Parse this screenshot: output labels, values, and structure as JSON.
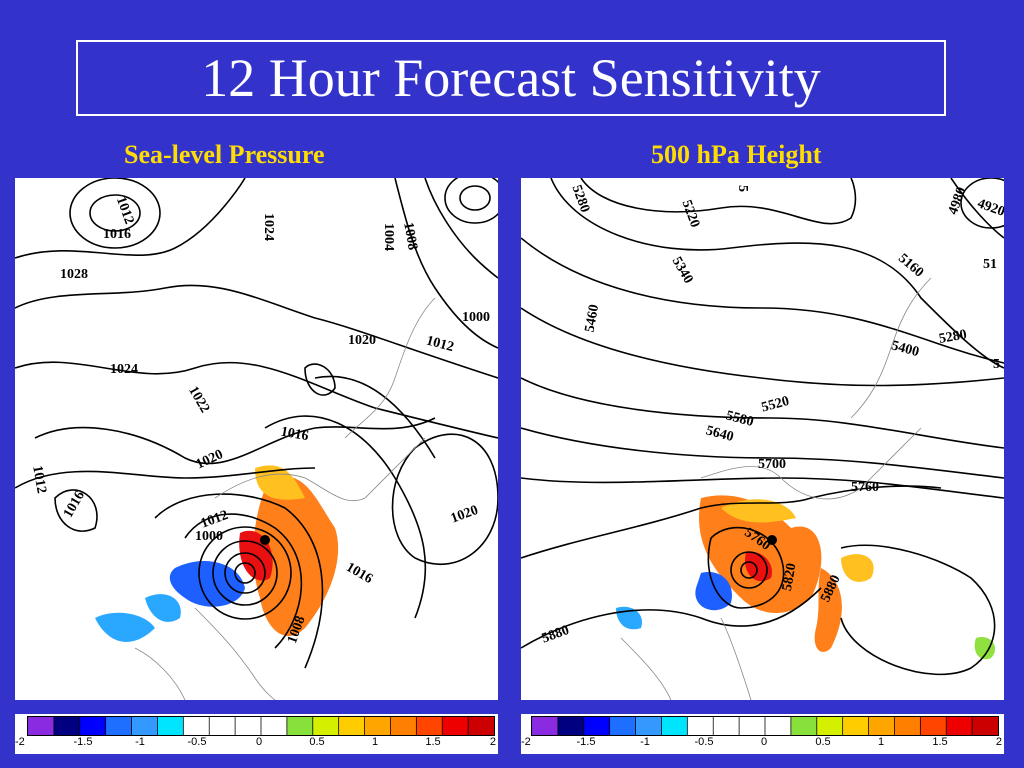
{
  "title": "12 Hour Forecast Sensitivity",
  "panels": {
    "left": {
      "subtitle": "Sea-level Pressure",
      "contour_labels": [
        "1012",
        "1016",
        "1028",
        "1024",
        "1022",
        "1020",
        "1012",
        "1016",
        "1020",
        "1016",
        "1012",
        "1008",
        "1000",
        "1004",
        "1008",
        "1012",
        "1016",
        "1020",
        "1024",
        "1000"
      ],
      "colorbar_ticks": [
        "-2",
        "-1.5",
        "-1",
        "-0.5",
        "0",
        "0.5",
        "1",
        "1.5",
        "2"
      ]
    },
    "right": {
      "subtitle": "500 hPa Height",
      "contour_labels": [
        "5280",
        "5220",
        "5340",
        "5460",
        "5160",
        "4980",
        "4920",
        "5400",
        "5280",
        "5520",
        "5580",
        "5640",
        "5700",
        "5760",
        "5760",
        "5820",
        "5880",
        "5880",
        "51",
        "5"
      ],
      "colorbar_ticks": [
        "-2",
        "-1.5",
        "-1",
        "-0.5",
        "0",
        "0.5",
        "1",
        "1.5",
        "2"
      ]
    }
  },
  "colorbar_colors": [
    "#8a2be2",
    "#000080",
    "#0000ff",
    "#1e6fff",
    "#3399ff",
    "#00e5ff",
    "#ffffff",
    "#ffffff",
    "#ffffff",
    "#ffffff",
    "#88e03a",
    "#d4f000",
    "#ffcc00",
    "#ffa500",
    "#ff7f00",
    "#ff4500",
    "#ee0000",
    "#cc0000"
  ],
  "sensitivity_colors": {
    "red": "#e81010",
    "orange": "#ff7f1a",
    "yellow": "#ffc020",
    "blue": "#1e5fff",
    "lightblue": "#2aa8ff",
    "green": "#90e040"
  }
}
